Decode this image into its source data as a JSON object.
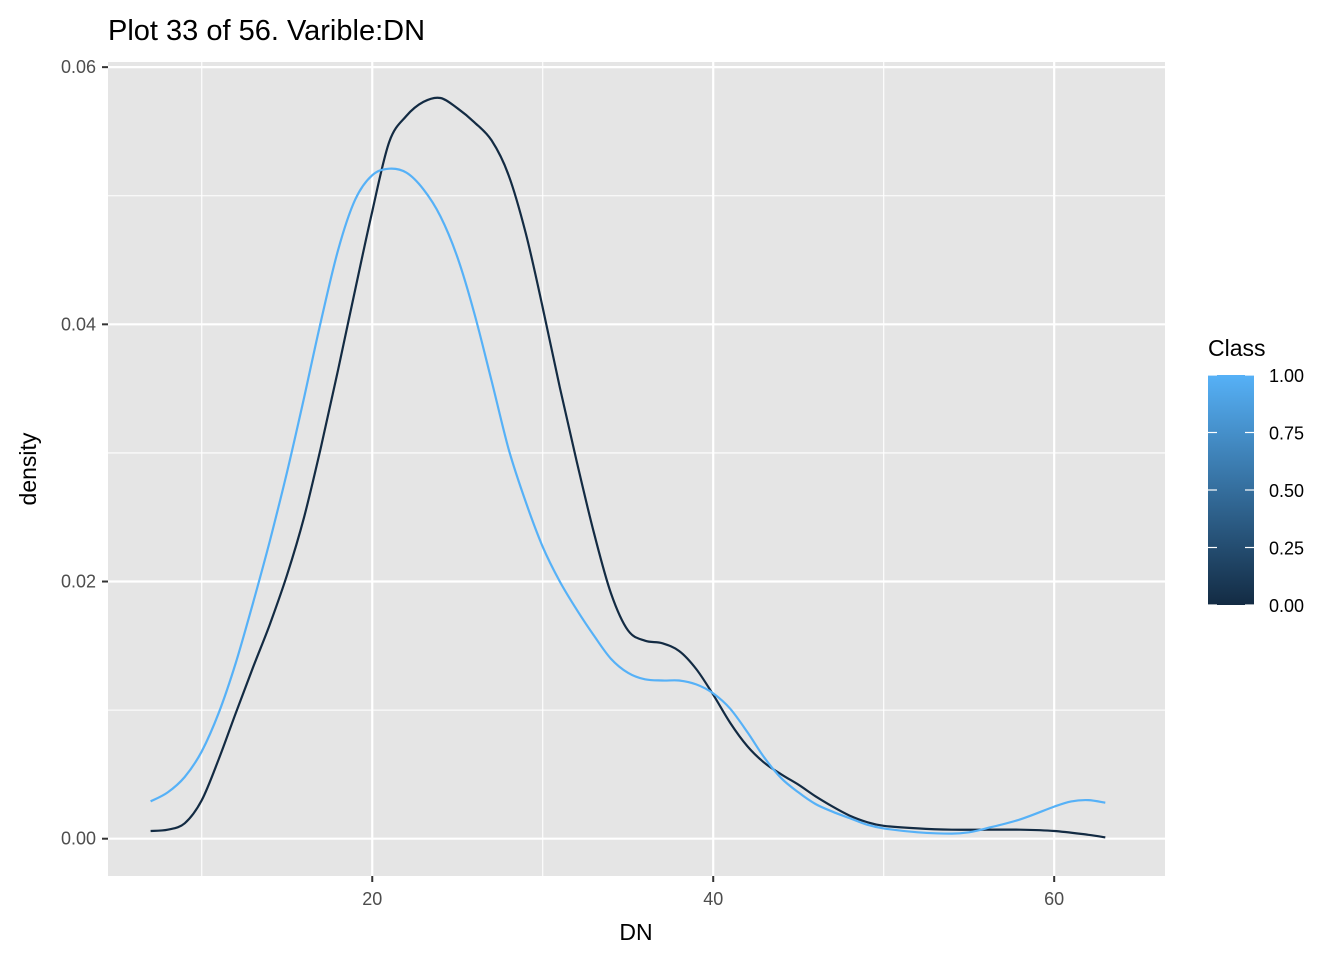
{
  "chart_data": {
    "type": "line",
    "title": "Plot 33 of 56. Varible:DN",
    "xlabel": "DN",
    "ylabel": "density",
    "xlim": [
      4.5,
      66.5
    ],
    "ylim": [
      -0.0029,
      0.0604
    ],
    "x_ticks": [
      20,
      40,
      60
    ],
    "x_minor": [
      10,
      30,
      50
    ],
    "y_ticks": [
      0.0,
      0.02,
      0.04,
      0.06
    ],
    "y_tick_labels": [
      "0.00",
      "0.02",
      "0.04",
      "0.06"
    ],
    "y_minor": [
      0.01,
      0.03,
      0.05
    ],
    "grid": true,
    "legend": {
      "title": "Class",
      "position": "right",
      "type": "colorbar",
      "labels": [
        "1.00",
        "0.75",
        "0.50",
        "0.25",
        "0.00"
      ],
      "values": [
        1.0,
        0.75,
        0.5,
        0.25,
        0.0
      ],
      "low_color": "#132b43",
      "high_color": "#56b1f7"
    },
    "series": [
      {
        "class": 0,
        "color": "#132b43",
        "x": [
          7,
          8,
          9,
          10,
          11,
          12,
          13,
          14,
          15,
          16,
          17,
          18,
          19,
          20,
          21,
          22,
          23,
          24,
          25,
          26,
          27,
          28,
          29,
          30,
          31,
          32,
          33,
          34,
          35,
          36,
          37,
          38,
          39,
          40,
          41,
          42,
          43,
          44,
          45,
          46,
          47,
          48,
          49,
          50,
          52,
          54,
          56,
          58,
          60,
          62,
          63
        ],
        "y": [
          0.0006,
          0.0007,
          0.0012,
          0.003,
          0.0062,
          0.0098,
          0.0133,
          0.0167,
          0.0205,
          0.025,
          0.0305,
          0.0365,
          0.0427,
          0.0488,
          0.0542,
          0.0562,
          0.0573,
          0.0576,
          0.0568,
          0.0557,
          0.0543,
          0.0516,
          0.0471,
          0.0413,
          0.0351,
          0.0293,
          0.0238,
          0.0191,
          0.0162,
          0.0154,
          0.0152,
          0.0146,
          0.0132,
          0.0112,
          0.009,
          0.0072,
          0.0059,
          0.005,
          0.0042,
          0.0033,
          0.0025,
          0.0018,
          0.0013,
          0.001,
          0.0008,
          0.0007,
          0.0007,
          0.0007,
          0.0006,
          0.0003,
          0.0001
        ]
      },
      {
        "class": 1,
        "color": "#56b1f7",
        "x": [
          7,
          8,
          9,
          10,
          11,
          12,
          13,
          14,
          15,
          16,
          17,
          18,
          19,
          20,
          21,
          22,
          23,
          24,
          25,
          26,
          27,
          28,
          29,
          30,
          31,
          32,
          33,
          34,
          35,
          36,
          37,
          38,
          39,
          40,
          41,
          42,
          43,
          44,
          45,
          46,
          47,
          48,
          49,
          50,
          52,
          54,
          55,
          56,
          58,
          60,
          61,
          62,
          63
        ],
        "y": [
          0.0029,
          0.0036,
          0.0048,
          0.0068,
          0.0098,
          0.0137,
          0.0183,
          0.0232,
          0.0285,
          0.0343,
          0.0403,
          0.0458,
          0.0497,
          0.0516,
          0.0521,
          0.0518,
          0.0505,
          0.0484,
          0.0452,
          0.0408,
          0.0356,
          0.0303,
          0.0262,
          0.0227,
          0.02,
          0.0178,
          0.0158,
          0.014,
          0.0129,
          0.0124,
          0.0123,
          0.0123,
          0.012,
          0.0113,
          0.0101,
          0.0083,
          0.0063,
          0.0047,
          0.0036,
          0.0027,
          0.0021,
          0.0016,
          0.0011,
          0.0008,
          0.0005,
          0.0004,
          0.0005,
          0.0008,
          0.0015,
          0.0025,
          0.0029,
          0.003,
          0.0028
        ]
      }
    ]
  }
}
